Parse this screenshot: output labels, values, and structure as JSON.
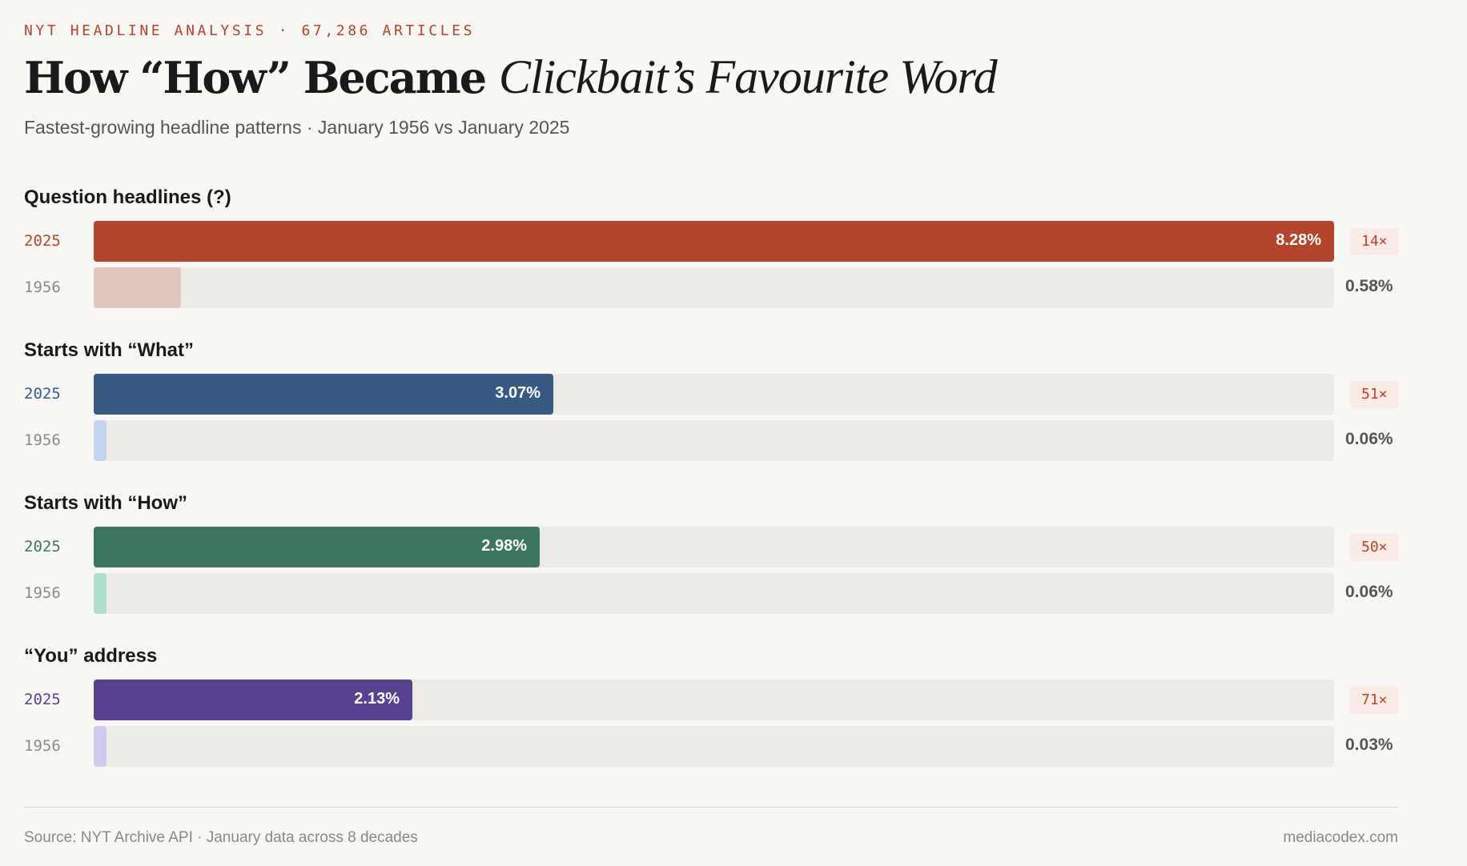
{
  "eyebrow": "NYT HEADLINE ANALYSIS · 67,286 ARTICLES",
  "title": {
    "main": "How “How” Became",
    "italic": "Clickbait’s Favourite Word"
  },
  "subtitle": "Fastest-growing headline patterns · January 1956 vs January 2025",
  "footer": {
    "source": "Source: NYT Archive API · January data across 8 decades",
    "credit": "mediacodex.com"
  },
  "colors": {
    "background": "#f8f7f3",
    "accent": "#b5442c",
    "track": "#ecebe6"
  },
  "chart_data": {
    "type": "bar",
    "orientation": "horizontal",
    "title": "How “How” Became Clickbait’s Favourite Word",
    "subtitle": "Fastest-growing headline patterns · January 1956 vs January 2025",
    "xlim": [
      0,
      8.28
    ],
    "unit": "%",
    "categories": [
      "Question headlines (?)",
      "Starts with “What”",
      "Starts with “How”",
      "“You” address"
    ],
    "series": [
      {
        "name": "2025",
        "values": [
          8.28,
          3.07,
          2.98,
          2.13
        ],
        "labels": [
          "8.28%",
          "3.07%",
          "2.98%",
          "2.13%"
        ]
      },
      {
        "name": "1956",
        "values": [
          0.58,
          0.06,
          0.06,
          0.03
        ],
        "labels": [
          "0.58%",
          "0.06%",
          "0.06%",
          "0.03%"
        ]
      }
    ],
    "multipliers": [
      "14×",
      "51×",
      "50×",
      "71×"
    ],
    "group_colors": [
      {
        "strong": "#b5442c",
        "light": "#e2c5bb"
      },
      {
        "strong": "#375a83",
        "light": "#c3d5f0"
      },
      {
        "strong": "#3b775d",
        "light": "#addfc9"
      },
      {
        "strong": "#574190",
        "light": "#cfcaf2"
      }
    ]
  }
}
